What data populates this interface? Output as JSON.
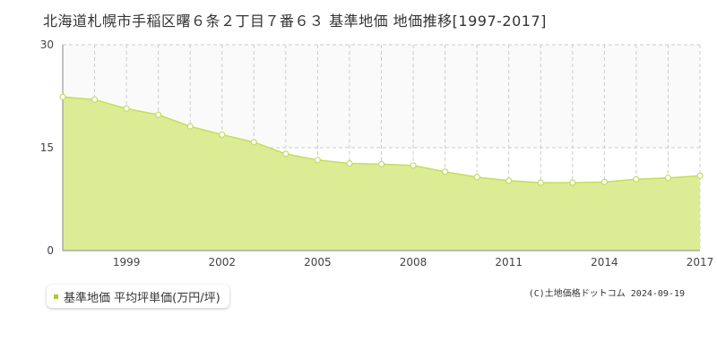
{
  "title": "北海道札幌市手稲区曙６条２丁目７番６３ 基準地価 地価推移[1997-2017]",
  "legend": {
    "label": "基準地価 平均坪単価(万円/坪)"
  },
  "credit": "(C)土地価格ドットコム 2024-09-19",
  "colors": {
    "fill": "#dcec94",
    "line": "#c4dc60",
    "marker_stroke": "#c4dc60",
    "legend_swatch": "#a8cc30",
    "grid": "#cccccc",
    "upper_band": "#fafafa"
  },
  "chart_data": {
    "type": "area",
    "title": "北海道札幌市手稲区曙６条２丁目７番６３ 基準地価 地価推移[1997-2017]",
    "xlabel": "",
    "ylabel": "",
    "xlim": [
      1997,
      2017
    ],
    "ylim": [
      0,
      30
    ],
    "y_ticks": [
      0,
      15,
      30
    ],
    "x_tick_labels": [
      1999,
      2002,
      2005,
      2008,
      2011,
      2014,
      2017
    ],
    "grid": true,
    "legend_position": "bottom-left",
    "series": [
      {
        "name": "基準地価 平均坪単価(万円/坪)",
        "x": [
          1997,
          1998,
          1999,
          2000,
          2001,
          2002,
          2003,
          2004,
          2005,
          2006,
          2007,
          2008,
          2009,
          2010,
          2011,
          2012,
          2013,
          2014,
          2015,
          2016,
          2017
        ],
        "values": [
          22.4,
          22.0,
          20.7,
          19.8,
          18.1,
          16.9,
          15.8,
          14.1,
          13.2,
          12.7,
          12.6,
          12.4,
          11.5,
          10.7,
          10.2,
          9.9,
          9.9,
          10.0,
          10.4,
          10.6,
          10.9
        ]
      }
    ]
  }
}
